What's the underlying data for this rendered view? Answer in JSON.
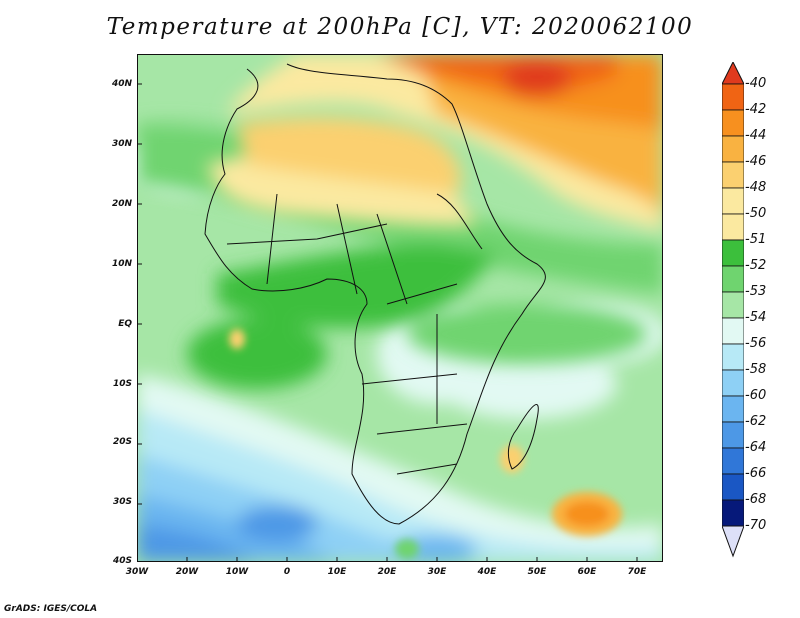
{
  "title": "Temperature at 200hPa [C], VT: 2020062100",
  "credit": "GrADS: IGES/COLA",
  "axes": {
    "lat_labels": [
      "40N",
      "30N",
      "20N",
      "10N",
      "EQ",
      "10S",
      "20S",
      "30S",
      "40S"
    ],
    "lon_labels": [
      "30W",
      "20W",
      "10W",
      "0",
      "10E",
      "20E",
      "30E",
      "40E",
      "50E",
      "60E",
      "70E"
    ]
  },
  "colorbar": {
    "labels": [
      "-40",
      "-42",
      "-44",
      "-46",
      "-48",
      "-50",
      "-51",
      "-52",
      "-53",
      "-54",
      "-56",
      "-58",
      "-60",
      "-62",
      "-64",
      "-66",
      "-68",
      "-70"
    ],
    "colors": [
      "#e03a1e",
      "#f06414",
      "#f7901f",
      "#f9b241",
      "#fbd070",
      "#fbe9a0",
      "#3cbf3c",
      "#6fd46f",
      "#a6e6a6",
      "#e2f9f3",
      "#b7e9f6",
      "#8ed0f5",
      "#6bb5f0",
      "#4d98e6",
      "#3077d8",
      "#1a57c4",
      "#0c3aa4",
      "#06197a",
      "#dde0f8"
    ]
  }
}
